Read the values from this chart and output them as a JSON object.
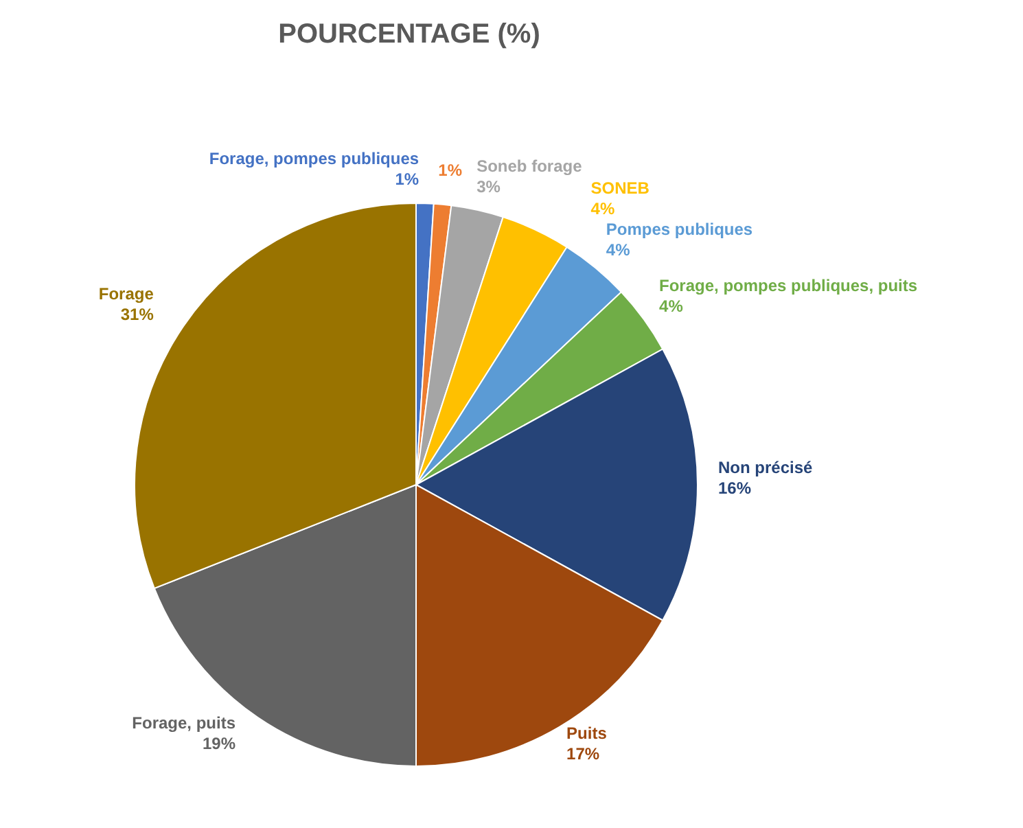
{
  "chart_data": {
    "type": "pie",
    "title": "POURCENTAGE (%)",
    "categories": [
      "Forage, pompes publiques",
      null,
      "Soneb forage",
      "SONEB",
      "Pompes publiques",
      "Forage, pompes publiques, puits",
      "Non précisé",
      "Puits",
      "Forage, puits",
      "Forage"
    ],
    "values": [
      1,
      1,
      3,
      4,
      4,
      4,
      16,
      17,
      19,
      31
    ],
    "colors": [
      "#4472c4",
      "#ed7d31",
      "#a5a5a5",
      "#ffc000",
      "#5b9bd5",
      "#70ad47",
      "#264478",
      "#9e480e",
      "#636363",
      "#997300"
    ],
    "value_labels": [
      "1%",
      "1%",
      "3%",
      "4%",
      "4%",
      "4%",
      "16%",
      "17%",
      "19%",
      "31%"
    ]
  }
}
